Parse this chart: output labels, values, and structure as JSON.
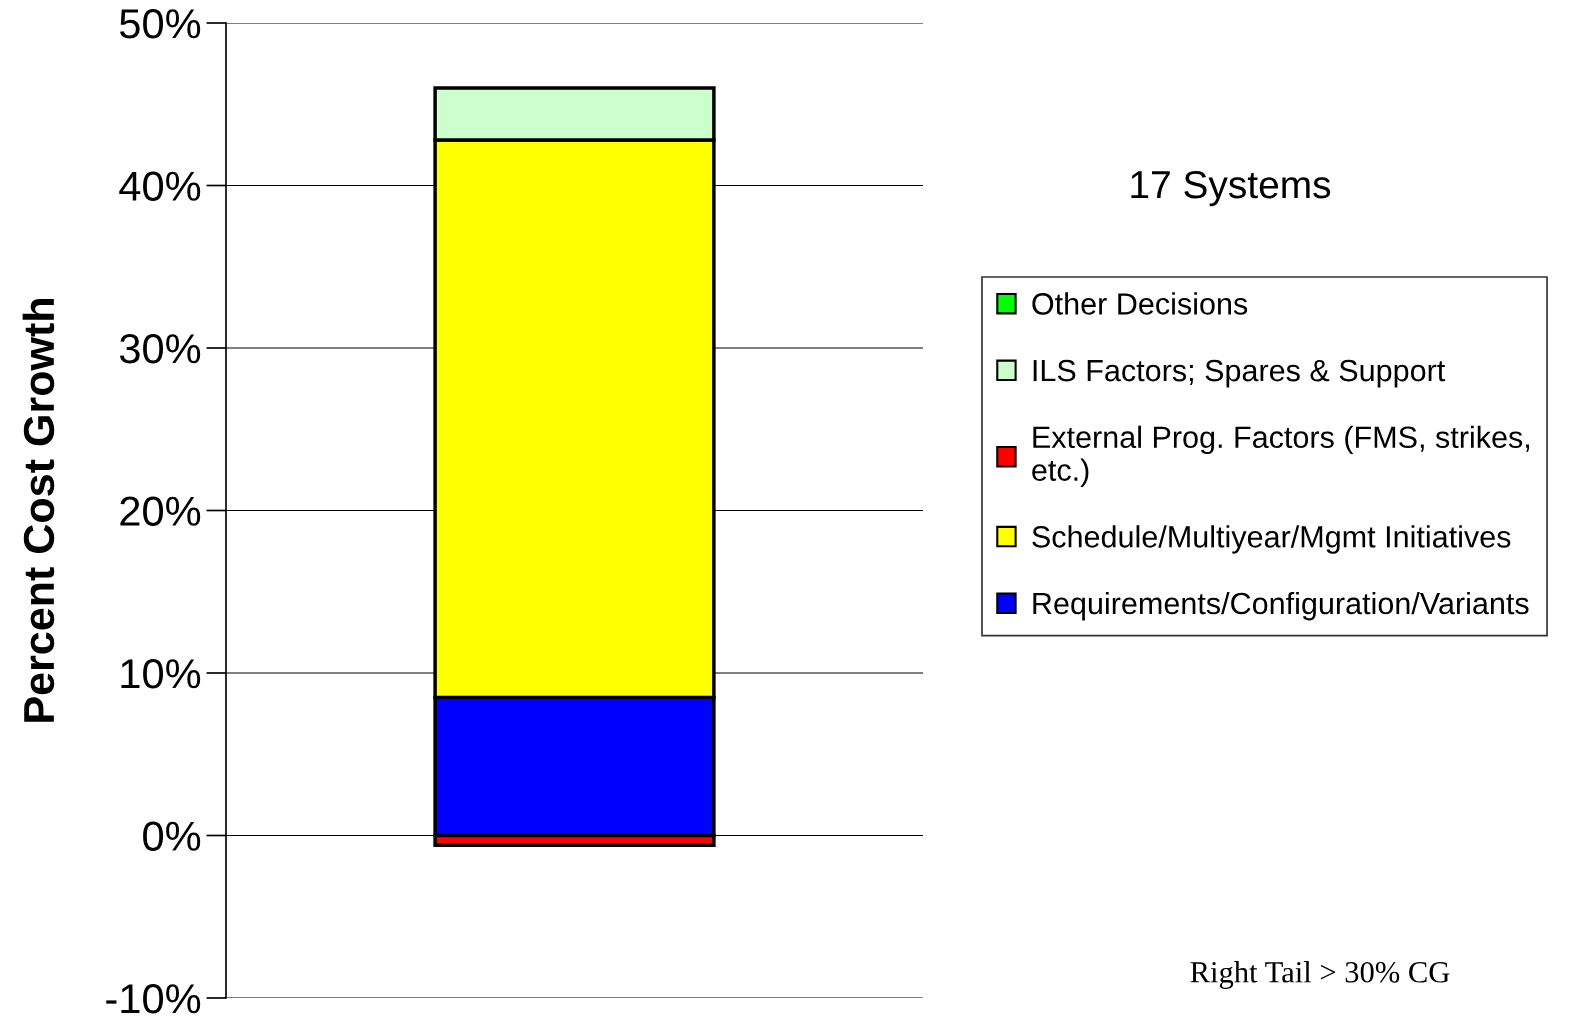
{
  "chart_data": {
    "type": "bar",
    "stacked": true,
    "title": "17 Systems",
    "ylabel": "Percent Cost Growth",
    "categories": [
      null
    ],
    "series": [
      {
        "name": "Requirements/Configuration/Variants",
        "color": "#0000ff",
        "values": [
          8.5
        ]
      },
      {
        "name": "Schedule/Multiyear/Mgmt Initiatives",
        "color": "#ffff00",
        "values": [
          34.3
        ]
      },
      {
        "name": "External Prog. Factors (FMS, strikes, etc.)",
        "color": "#ff0000",
        "values": [
          -0.6
        ]
      },
      {
        "name": "ILS Factors; Spares & Support",
        "color": "#ccffcc",
        "values": [
          3.2
        ]
      },
      {
        "name": "Other Decisions",
        "color": "#00ff00",
        "values": [
          0
        ]
      }
    ],
    "ylim": [
      -10,
      50
    ],
    "yticks": [
      {
        "value": -10,
        "label": "-10%"
      },
      {
        "value": 0,
        "label": "0%"
      },
      {
        "value": 10,
        "label": "10%"
      },
      {
        "value": 20,
        "label": "20%"
      },
      {
        "value": 30,
        "label": "30%"
      },
      {
        "value": 40,
        "label": "40%"
      },
      {
        "value": 50,
        "label": "50%"
      }
    ],
    "grid": "y",
    "legend": "right",
    "annotations": [
      "Right Tail > 30% CG"
    ]
  }
}
